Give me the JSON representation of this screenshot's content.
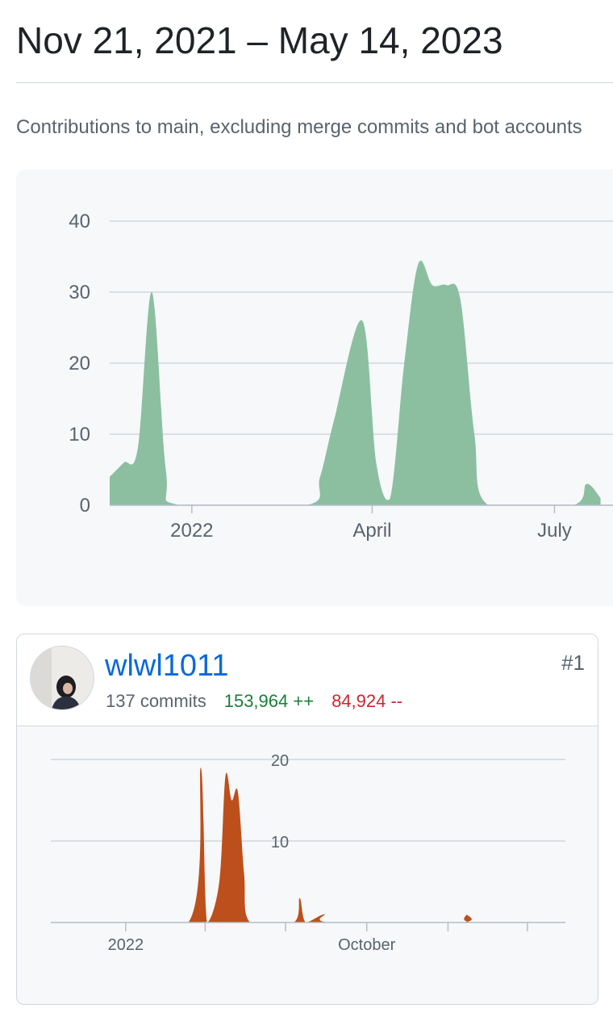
{
  "header": {
    "date_range": "Nov 21, 2021 – May 14, 2023",
    "description": "Contributions to main, excluding merge commits and bot accounts"
  },
  "colors": {
    "main_area": "#8cbf9f",
    "contributor_area": "#bd4f1c",
    "grid": "#d0d7de",
    "link": "#0969da",
    "additions": "#1a7f37",
    "deletions": "#d1242f"
  },
  "chart_data": [
    {
      "type": "area",
      "title": "",
      "xlabel": "",
      "ylabel": "",
      "ylim": [
        0,
        40
      ],
      "y_ticks": [
        0,
        10,
        20,
        30,
        40
      ],
      "x_tick_labels": [
        "2022",
        "April",
        "July"
      ],
      "grid": true,
      "series": [
        {
          "values_by_week": [
            {
              "week": "2021-11-21",
              "commits": 4
            },
            {
              "week": "2021-11-28",
              "commits": 6
            },
            {
              "week": "2021-12-05",
              "commits": 8
            },
            {
              "week": "2021-12-12",
              "commits": 30
            },
            {
              "week": "2021-12-19",
              "commits": 5
            },
            {
              "week": "2021-12-26",
              "commits": 0
            },
            {
              "week": "2022-02-27",
              "commits": 0
            },
            {
              "week": "2022-03-06",
              "commits": 4
            },
            {
              "week": "2022-03-13",
              "commits": 12
            },
            {
              "week": "2022-03-27",
              "commits": 26
            },
            {
              "week": "2022-04-03",
              "commits": 6
            },
            {
              "week": "2022-04-10",
              "commits": 1
            },
            {
              "week": "2022-04-17",
              "commits": 20
            },
            {
              "week": "2022-04-24",
              "commits": 34
            },
            {
              "week": "2022-05-01",
              "commits": 31
            },
            {
              "week": "2022-05-08",
              "commits": 31
            },
            {
              "week": "2022-05-15",
              "commits": 29
            },
            {
              "week": "2022-05-22",
              "commits": 10
            },
            {
              "week": "2022-05-29",
              "commits": 0
            },
            {
              "week": "2022-07-10",
              "commits": 0
            },
            {
              "week": "2022-07-17",
              "commits": 3
            },
            {
              "week": "2022-07-24",
              "commits": 1
            }
          ]
        }
      ]
    },
    {
      "type": "area",
      "title": "",
      "xlabel": "",
      "ylabel": "",
      "ylim": [
        0,
        20
      ],
      "y_ticks": [
        10,
        20
      ],
      "x_tick_labels": [
        "2022",
        "October"
      ],
      "grid": true,
      "series": [
        {
          "values_by_week": [
            {
              "week": "2021-11-21",
              "commits": 0
            },
            {
              "week": "2022-03-13",
              "commits": 0
            },
            {
              "week": "2022-03-27",
              "commits": 19
            },
            {
              "week": "2022-04-03",
              "commits": 0
            },
            {
              "week": "2022-04-17",
              "commits": 5
            },
            {
              "week": "2022-04-24",
              "commits": 18
            },
            {
              "week": "2022-05-01",
              "commits": 15
            },
            {
              "week": "2022-05-08",
              "commits": 16
            },
            {
              "week": "2022-05-15",
              "commits": 6
            },
            {
              "week": "2022-05-22",
              "commits": 0
            },
            {
              "week": "2022-07-10",
              "commits": 0
            },
            {
              "week": "2022-07-17",
              "commits": 3
            },
            {
              "week": "2022-07-24",
              "commits": 0
            },
            {
              "week": "2022-08-14",
              "commits": 1
            },
            {
              "week": "2022-08-21",
              "commits": 0
            },
            {
              "week": "2023-01-15",
              "commits": 0
            },
            {
              "week": "2023-01-22",
              "commits": 1
            },
            {
              "week": "2023-01-29",
              "commits": 0
            },
            {
              "week": "2023-05-14",
              "commits": 0
            }
          ]
        }
      ]
    }
  ],
  "contributors": [
    {
      "username": "wlwl1011",
      "commits": "137 commits",
      "additions": "153,964 ++",
      "deletions": "84,924 --",
      "rank": "#1"
    }
  ]
}
